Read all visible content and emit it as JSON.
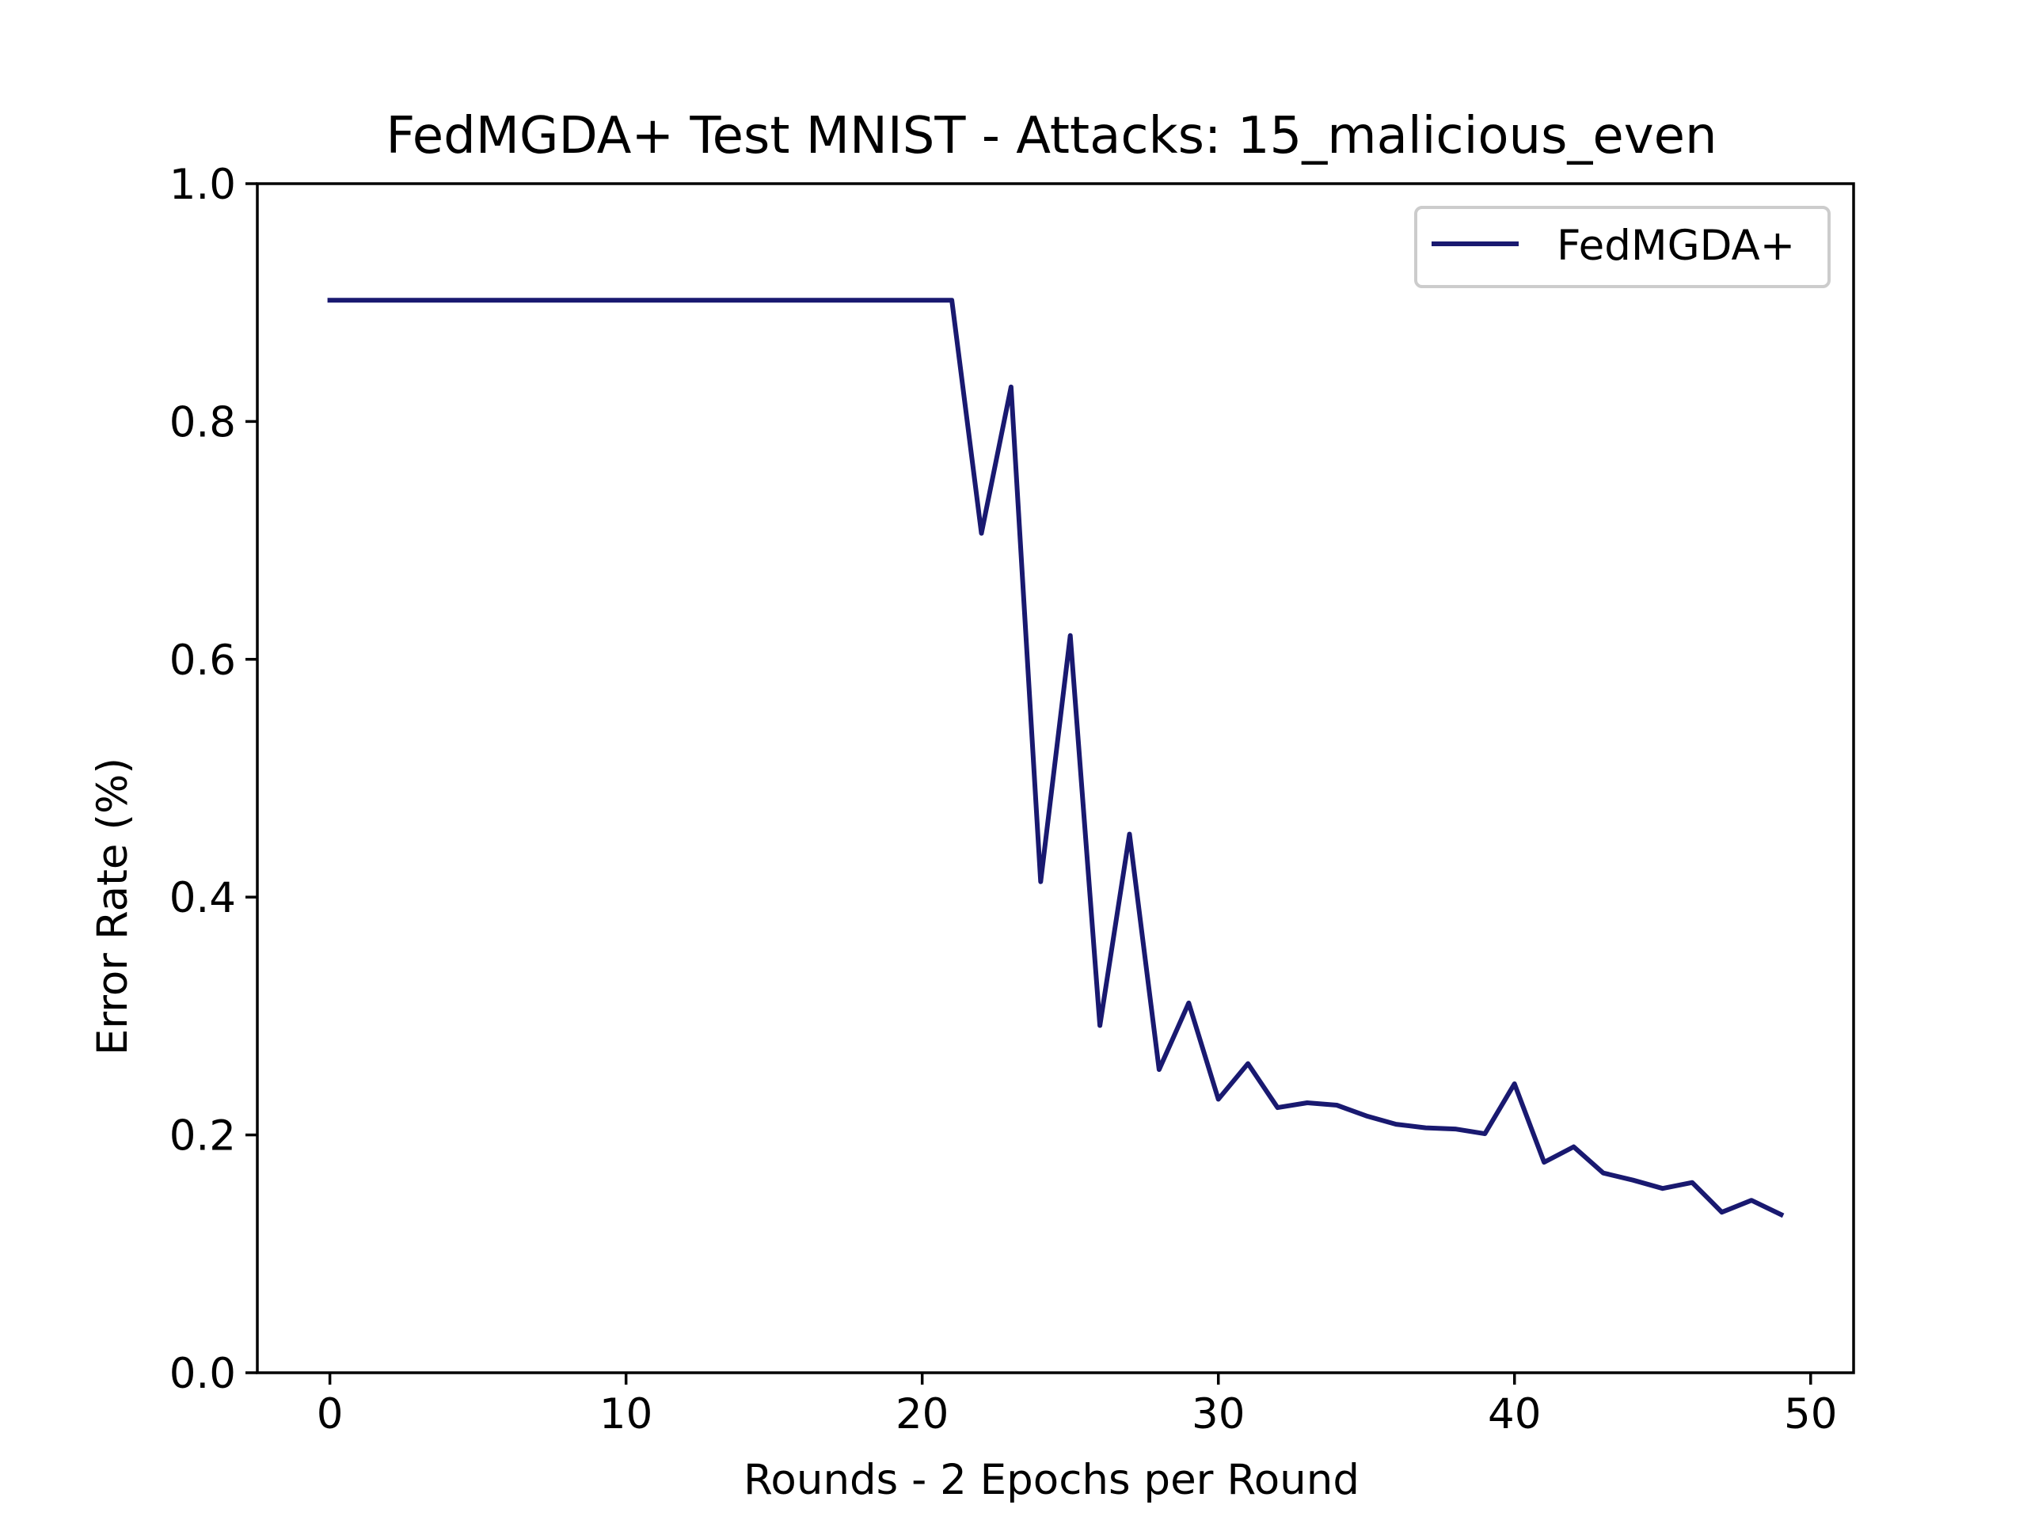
{
  "chart_data": {
    "type": "line",
    "title": "FedMGDA+ Test MNIST - Attacks: 15_malicious_even",
    "xlabel": "Rounds - 2 Epochs per Round",
    "ylabel": "Error Rate (%)",
    "xlim": [
      -2.45,
      51.45
    ],
    "ylim": [
      0.0,
      1.0
    ],
    "xticks": [
      0,
      10,
      20,
      30,
      40,
      50
    ],
    "xtick_labels": [
      "0",
      "10",
      "20",
      "30",
      "40",
      "50"
    ],
    "yticks": [
      0.0,
      0.2,
      0.4,
      0.6,
      0.8,
      1.0
    ],
    "ytick_labels": [
      "0.0",
      "0.2",
      "0.4",
      "0.6",
      "0.8",
      "1.0"
    ],
    "grid": false,
    "legend_position": "top-right",
    "series": [
      {
        "name": "FedMGDA+",
        "color": "#191970",
        "x": [
          0,
          1,
          2,
          3,
          4,
          5,
          6,
          7,
          8,
          9,
          10,
          11,
          12,
          13,
          14,
          15,
          16,
          17,
          18,
          19,
          20,
          21,
          22,
          23,
          24,
          25,
          26,
          27,
          28,
          29,
          30,
          31,
          32,
          33,
          34,
          35,
          36,
          37,
          38,
          39,
          40,
          41,
          42,
          43,
          44,
          45,
          46,
          47,
          48,
          49
        ],
        "y": [
          0.902,
          0.902,
          0.902,
          0.902,
          0.902,
          0.902,
          0.902,
          0.902,
          0.902,
          0.902,
          0.902,
          0.902,
          0.902,
          0.902,
          0.902,
          0.902,
          0.902,
          0.902,
          0.902,
          0.902,
          0.902,
          0.902,
          0.706,
          0.829,
          0.413,
          0.62,
          0.292,
          0.453,
          0.255,
          0.311,
          0.23,
          0.26,
          0.223,
          0.227,
          0.225,
          0.216,
          0.209,
          0.206,
          0.205,
          0.201,
          0.243,
          0.177,
          0.19,
          0.168,
          0.162,
          0.155,
          0.16,
          0.135,
          0.145,
          0.133
        ]
      }
    ]
  }
}
